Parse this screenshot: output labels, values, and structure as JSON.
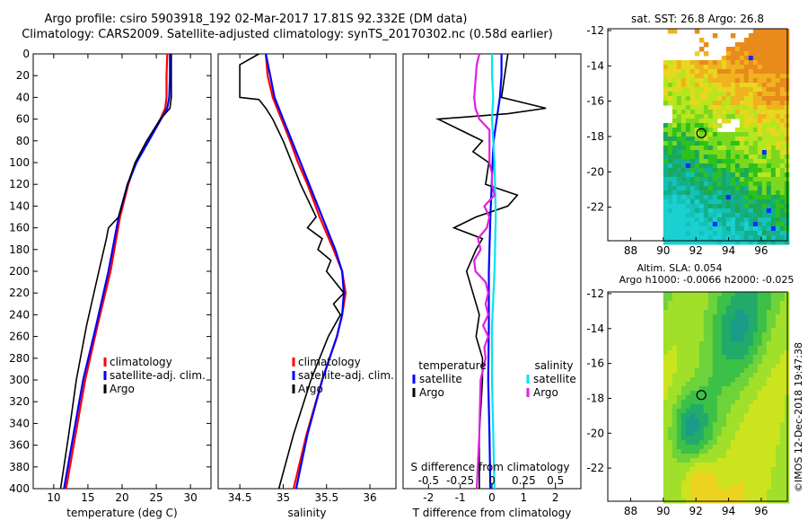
{
  "title_line1": "Argo profile: csiro 5903918_192 02-Mar-2017 17.81S 92.332E (DM data)",
  "title_line2": "Climatology: CARS2009. Satellite-adjusted climatology: synTS_20170302.nc (0.58d earlier)",
  "credit": "©IMOS 12-Dec-2018 19:47:38",
  "colors": {
    "climatology": "#ff0000",
    "satellite": "#0000ff",
    "argo": "#000000",
    "sal_satellite": "#00e5ee",
    "sal_argo": "#e020e0"
  },
  "chart_data": [
    {
      "type": "line",
      "id": "temperature",
      "xlabel": "temperature (deg C)",
      "ylabel": "",
      "xlim": [
        7,
        33
      ],
      "ylim": [
        400,
        0
      ],
      "xticks": [
        10,
        15,
        20,
        25,
        30
      ],
      "yticks": [
        0,
        20,
        40,
        60,
        80,
        100,
        120,
        140,
        160,
        180,
        200,
        220,
        240,
        260,
        280,
        300,
        320,
        340,
        360,
        380,
        400
      ],
      "legend": [
        "climatology",
        "satellite-adj. clim.",
        "Argo"
      ],
      "series": [
        {
          "name": "climatology",
          "color": "red",
          "depth": [
            0,
            20,
            40,
            50,
            60,
            80,
            100,
            120,
            150,
            200,
            250,
            300,
            350,
            400
          ],
          "values": [
            26.6,
            26.5,
            26.5,
            26.3,
            25.6,
            23.7,
            22.0,
            20.9,
            19.7,
            18.3,
            16.4,
            14.6,
            13.2,
            11.8
          ]
        },
        {
          "name": "satellite-adj. clim.",
          "color": "blue",
          "depth": [
            0,
            20,
            40,
            50,
            60,
            80,
            100,
            120,
            150,
            200,
            250,
            300,
            350,
            400
          ],
          "values": [
            27.0,
            27.0,
            26.9,
            26.6,
            25.7,
            23.9,
            22.1,
            20.8,
            19.5,
            18.0,
            16.2,
            14.3,
            12.9,
            11.5
          ]
        },
        {
          "name": "Argo",
          "color": "black",
          "depth": [
            0,
            20,
            40,
            50,
            55,
            60,
            80,
            100,
            120,
            150,
            160,
            170,
            200,
            250,
            300,
            350,
            400
          ],
          "values": [
            27.2,
            27.2,
            27.2,
            27.0,
            26.3,
            25.6,
            23.6,
            21.9,
            20.8,
            19.5,
            18.0,
            17.7,
            16.6,
            14.8,
            13.3,
            12.2,
            11.0
          ]
        }
      ]
    },
    {
      "type": "line",
      "id": "salinity",
      "xlabel": "salinity",
      "xlim": [
        34.25,
        36.3
      ],
      "ylim": [
        400,
        0
      ],
      "xticks": [
        34.5,
        35,
        35.5,
        36
      ],
      "xticklabels": [
        "34.5",
        "35",
        "35.5",
        "36"
      ],
      "legend": [
        "climatology",
        "satellite-adj. clim.",
        "Argo"
      ],
      "series": [
        {
          "name": "climatology",
          "color": "red",
          "depth": [
            0,
            20,
            40,
            60,
            80,
            100,
            120,
            150,
            180,
            200,
            220,
            240,
            260,
            300,
            350,
            400
          ],
          "values": [
            34.8,
            34.82,
            34.88,
            34.98,
            35.08,
            35.17,
            35.28,
            35.42,
            35.58,
            35.68,
            35.72,
            35.68,
            35.62,
            35.45,
            35.27,
            35.12
          ]
        },
        {
          "name": "satellite-adj. clim.",
          "color": "blue",
          "depth": [
            0,
            20,
            40,
            60,
            80,
            100,
            120,
            150,
            180,
            200,
            220,
            240,
            260,
            300,
            350,
            400
          ],
          "values": [
            34.8,
            34.85,
            34.9,
            35.0,
            35.1,
            35.2,
            35.3,
            35.45,
            35.6,
            35.68,
            35.7,
            35.68,
            35.62,
            35.45,
            35.28,
            35.15
          ]
        },
        {
          "name": "Argo",
          "color": "black",
          "depth": [
            0,
            10,
            40,
            42,
            50,
            60,
            80,
            100,
            120,
            140,
            150,
            160,
            170,
            180,
            190,
            200,
            210,
            220,
            230,
            240,
            260,
            300,
            350,
            400
          ],
          "values": [
            34.72,
            34.5,
            34.5,
            34.72,
            34.8,
            34.88,
            35.0,
            35.1,
            35.2,
            35.32,
            35.38,
            35.28,
            35.45,
            35.4,
            35.55,
            35.5,
            35.6,
            35.7,
            35.58,
            35.66,
            35.52,
            35.32,
            35.12,
            34.95
          ]
        }
      ]
    },
    {
      "type": "line",
      "id": "differences",
      "xlabel": "T difference from climatology",
      "xlim": [
        -2.8,
        2.8
      ],
      "ylim": [
        400,
        0
      ],
      "xticks": [
        -2,
        -1,
        0,
        1,
        2
      ],
      "top_axis_label": "S difference from climatology",
      "top_ticks": [
        -0.5,
        -0.25,
        0,
        0.25,
        0.5
      ],
      "top_ticklabels": [
        "-0.5",
        "-0.25",
        "0",
        "0.25",
        "0.5"
      ],
      "legend_temperature_title": "temperature",
      "legend_salinity_title": "salinity",
      "legend_temperature": [
        "satellite",
        "Argo"
      ],
      "legend_salinity": [
        "satellite",
        "Argo"
      ],
      "series": [
        {
          "name": "temperature satellite",
          "color": "blue",
          "depth": [
            0,
            20,
            40,
            60,
            80,
            100,
            150,
            200,
            250,
            300,
            350,
            400
          ],
          "values": [
            0.3,
            0.3,
            0.25,
            0.15,
            0.05,
            0.02,
            -0.05,
            -0.1,
            -0.1,
            -0.12,
            -0.08,
            -0.05
          ]
        },
        {
          "name": "temperature Argo",
          "color": "black",
          "depth": [
            0,
            20,
            40,
            50,
            55,
            60,
            80,
            90,
            100,
            120,
            130,
            140,
            150,
            160,
            170,
            180,
            200,
            220,
            240,
            260,
            280,
            300,
            350,
            400
          ],
          "values": [
            0.5,
            0.4,
            0.3,
            1.7,
            0.5,
            -1.7,
            -0.3,
            -0.6,
            -0.1,
            -0.2,
            0.8,
            0.5,
            -0.5,
            -1.2,
            -0.3,
            -0.5,
            -0.8,
            -0.6,
            -0.4,
            -0.5,
            -0.3,
            -0.3,
            -0.4,
            -0.4
          ]
        },
        {
          "name": "salinity satellite",
          "color": "cyan",
          "depth": [
            0,
            20,
            40,
            60,
            80,
            100,
            150,
            200,
            250,
            300,
            350,
            400
          ],
          "values": [
            0.0,
            0.0,
            0.01,
            0.0,
            0.01,
            0.02,
            0.03,
            0.02,
            0.0,
            0.0,
            0.01,
            0.02
          ]
        },
        {
          "name": "salinity Argo",
          "color": "magenta",
          "depth": [
            0,
            10,
            40,
            50,
            60,
            70,
            100,
            110,
            120,
            130,
            140,
            150,
            160,
            170,
            180,
            190,
            200,
            210,
            220,
            230,
            240,
            250,
            260,
            270,
            280,
            300,
            350,
            400
          ],
          "values": [
            -0.1,
            -0.12,
            -0.14,
            -0.13,
            -0.1,
            -0.02,
            -0.02,
            0.0,
            0.0,
            0.02,
            -0.06,
            -0.02,
            -0.04,
            -0.11,
            -0.09,
            -0.14,
            -0.13,
            -0.05,
            -0.03,
            -0.05,
            -0.03,
            -0.07,
            -0.03,
            -0.06,
            -0.05,
            -0.09,
            -0.1,
            -0.12
          ]
        }
      ]
    },
    {
      "type": "heatmap",
      "id": "sst_map",
      "title": "sat. SST: 26.8 Argo: 26.8",
      "xlim": [
        86.6,
        97.6
      ],
      "ylim": [
        -23.9,
        -11.9
      ],
      "xticks": [
        88,
        90,
        92,
        94,
        96
      ],
      "yticks": [
        -12,
        -14,
        -16,
        -18,
        -20,
        -22
      ],
      "land_edge_lon": 90,
      "argo_position": {
        "lon": 92.33,
        "lat": -17.81
      }
    },
    {
      "type": "heatmap",
      "id": "sla_map",
      "title_line1": "Altim. SLA: 0.054",
      "title_line2": "Argo h1000: -0.0066 h2000: -0.025",
      "xlim": [
        86.6,
        97.6
      ],
      "ylim": [
        -23.9,
        -11.9
      ],
      "xticks": [
        88,
        90,
        92,
        94,
        96
      ],
      "yticks": [
        -12,
        -14,
        -16,
        -18,
        -20,
        -22
      ],
      "land_edge_lon": 90,
      "argo_position": {
        "lon": 92.33,
        "lat": -17.81
      }
    }
  ]
}
